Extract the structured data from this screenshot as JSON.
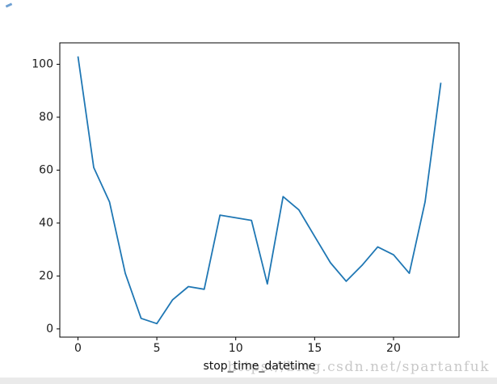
{
  "figure": {
    "background": "#ffffff",
    "frame_color": "#000000",
    "bottom_strip_color": "#eaeaea"
  },
  "chart_data": {
    "type": "line",
    "title": "",
    "xlabel": "stop_time_datetime",
    "ylabel": "",
    "x": [
      0,
      1,
      2,
      3,
      4,
      5,
      6,
      7,
      8,
      9,
      10,
      11,
      12,
      13,
      14,
      15,
      16,
      17,
      18,
      19,
      20,
      21,
      22,
      23
    ],
    "values": [
      103,
      61,
      48,
      21,
      4,
      2,
      11,
      16,
      15,
      43,
      42,
      41,
      17,
      50,
      45,
      35,
      25,
      18,
      24,
      31,
      28,
      21,
      48,
      93
    ],
    "xticks": [
      0,
      5,
      10,
      15,
      20
    ],
    "yticks": [
      0,
      20,
      40,
      60,
      80,
      100
    ],
    "xlim": [
      -1.15,
      24.15
    ],
    "ylim": [
      -3.1,
      108.1
    ],
    "line_color": "#1f77b4",
    "grid": false,
    "legend": null
  },
  "watermark": {
    "text": "https://blog.csdn.net/spartanfuk",
    "color": "#c8c8c8"
  }
}
